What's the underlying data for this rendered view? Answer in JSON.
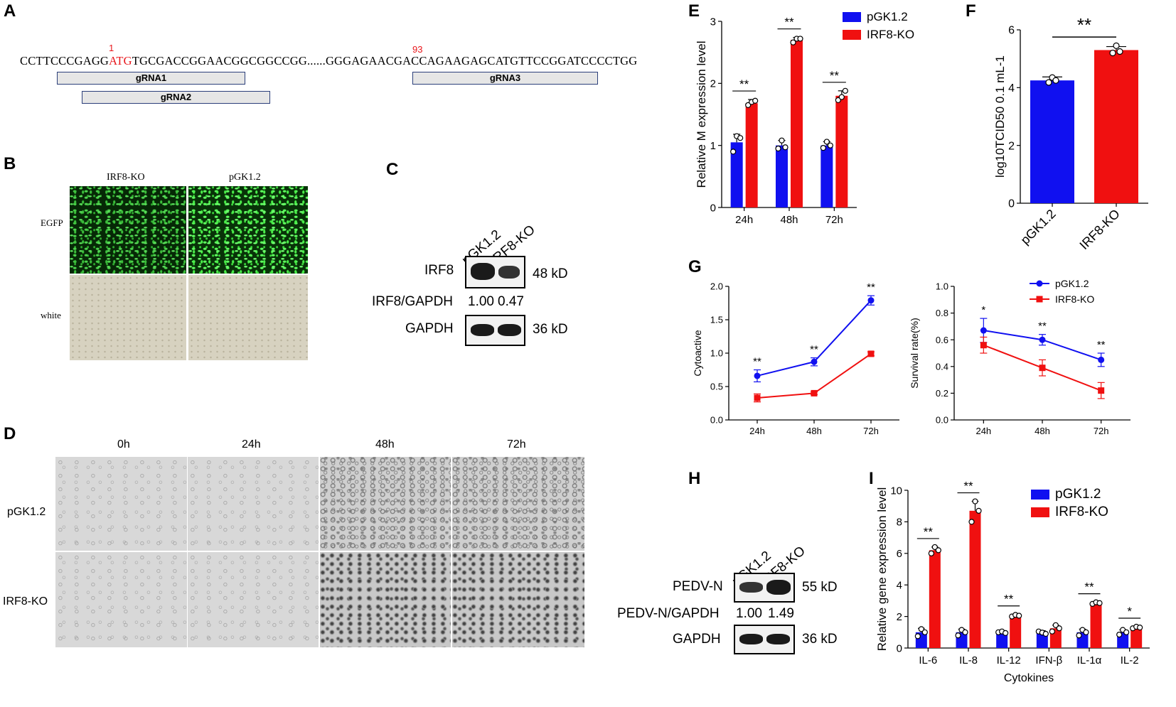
{
  "panels": {
    "A": "A",
    "B": "B",
    "C": "C",
    "D": "D",
    "E": "E",
    "F": "F",
    "G": "G",
    "H": "H",
    "I": "I"
  },
  "panelA": {
    "pos1": "1",
    "pos93": "93",
    "seq_a": "CCTTCCCGAGG",
    "seq_atg": "ATG",
    "seq_b": "TGCGACCGGAACGGCGGCCGG",
    "ellipsis": "......",
    "seq_c": "GGGAGAACGAC",
    "seq_d": "CAGAAGAGCATGTTCCGGATCCCCTGG",
    "grna1": "gRNA1",
    "grna2": "gRNA2",
    "grna3": "gRNA3"
  },
  "panelB": {
    "col1": "IRF8-KO",
    "col2": "pGK1.2",
    "row1": "EGFP",
    "row2": "white"
  },
  "panelC": {
    "lane1": "pGK1.2",
    "lane2": "IRF8-KO",
    "row1": "IRF8",
    "row1_size": "48 kD",
    "ratio_label": "IRF8/GAPDH",
    "ratio1": "1.00",
    "ratio2": "0.47",
    "row3": "GAPDH",
    "row3_size": "36 kD"
  },
  "panelD": {
    "cols": [
      "0h",
      "24h",
      "48h",
      "72h"
    ],
    "rows": [
      "pGK1.2",
      "IRF8-KO"
    ]
  },
  "panelH": {
    "lane1": "pGK1.2",
    "lane2": "IRF8-KO",
    "row1": "PEDV-N",
    "row1_size": "55 kD",
    "ratio_label": "PEDV-N/GAPDH",
    "ratio1": "1.00",
    "ratio2": "1.49",
    "row3": "GAPDH",
    "row3_size": "36 kD"
  },
  "colors": {
    "blue": "#1010f0",
    "red": "#f01010"
  },
  "chart_data": [
    {
      "id": "E",
      "type": "bar",
      "ylabel": "Relative M expression level",
      "categories": [
        "24h",
        "48h",
        "72h"
      ],
      "ylim": [
        0,
        3
      ],
      "yticks": [
        0,
        1,
        2,
        3
      ],
      "series": [
        {
          "name": "pGK1.2",
          "color": "#1010f0",
          "values": [
            1.05,
            1.0,
            1.0
          ],
          "err": [
            0.13,
            0.08,
            0.06
          ],
          "points": [
            [
              0.9,
              1.15,
              1.12
            ],
            [
              0.95,
              1.08,
              0.97
            ],
            [
              0.96,
              1.06,
              1.0
            ]
          ]
        },
        {
          "name": "IRF8-KO",
          "color": "#f01010",
          "values": [
            1.68,
            2.7,
            1.8
          ],
          "err": [
            0.06,
            0.04,
            0.08
          ],
          "points": [
            [
              1.65,
              1.7,
              1.72
            ],
            [
              2.66,
              2.72,
              2.72
            ],
            [
              1.73,
              1.78,
              1.88
            ]
          ]
        }
      ],
      "sig": [
        "**",
        "**",
        "**"
      ],
      "legend": "top-right"
    },
    {
      "id": "F",
      "type": "bar",
      "ylabel": "log10TCID50 0.1 mL-1",
      "categories": [
        "pGK1.2",
        "IRF8-KO"
      ],
      "ylim": [
        0,
        6
      ],
      "yticks": [
        0,
        2,
        4,
        6
      ],
      "values": [
        4.25,
        5.3
      ],
      "err": [
        0.12,
        0.12
      ],
      "colors": [
        "#1010f0",
        "#f01010"
      ],
      "points": [
        [
          4.18,
          4.35,
          4.25
        ],
        [
          5.2,
          5.45,
          5.25
        ]
      ],
      "sig": "**"
    },
    {
      "id": "G1",
      "type": "line",
      "ylabel": "Cytoactive",
      "x": [
        "24h",
        "48h",
        "72h"
      ],
      "ylim": [
        0,
        2
      ],
      "yticks": [
        "0.0",
        "0.5",
        "1.0",
        "1.5",
        "2.0"
      ],
      "series": [
        {
          "name": "pGK1.2",
          "color": "#1010f0",
          "values": [
            0.66,
            0.87,
            1.79
          ],
          "err": [
            0.09,
            0.06,
            0.07
          ]
        },
        {
          "name": "IRF8-KO",
          "color": "#f01010",
          "values": [
            0.33,
            0.4,
            0.99
          ],
          "err": [
            0.06,
            0.02,
            0.03
          ]
        }
      ],
      "sig": [
        "**",
        "**",
        "**"
      ]
    },
    {
      "id": "G2",
      "type": "line",
      "ylabel": "Survival rate(%)",
      "x": [
        "24h",
        "48h",
        "72h"
      ],
      "ylim": [
        0,
        1
      ],
      "yticks": [
        "0.0",
        "0.2",
        "0.4",
        "0.6",
        "0.8",
        "1.0"
      ],
      "series": [
        {
          "name": "pGK1.2",
          "color": "#1010f0",
          "values": [
            0.67,
            0.6,
            0.45
          ],
          "err": [
            0.09,
            0.04,
            0.05
          ]
        },
        {
          "name": "IRF8-KO",
          "color": "#f01010",
          "values": [
            0.56,
            0.39,
            0.22
          ],
          "err": [
            0.06,
            0.06,
            0.06
          ]
        }
      ],
      "sig": [
        "*",
        "**",
        "**"
      ],
      "legend": "top-right"
    },
    {
      "id": "I",
      "type": "bar",
      "ylabel": "Relative gene expression level",
      "xlabel": "Cytokines",
      "categories": [
        "IL-6",
        "IL-8",
        "IL-12",
        "IFN-β",
        "IL-1α",
        "IL-2"
      ],
      "ylim": [
        0,
        10
      ],
      "yticks": [
        0,
        2,
        4,
        6,
        8,
        10
      ],
      "series": [
        {
          "name": "pGK1.2",
          "color": "#1010f0",
          "values": [
            1.0,
            1.0,
            1.0,
            1.0,
            1.0,
            1.0
          ],
          "err": [
            0.25,
            0.2,
            0.1,
            0.1,
            0.2,
            0.15
          ],
          "points": [
            [
              0.75,
              1.2,
              1.0
            ],
            [
              0.8,
              1.15,
              1.0
            ],
            [
              1.0,
              1.05,
              0.95
            ],
            [
              1.05,
              0.98,
              0.9
            ],
            [
              0.8,
              1.15,
              1.0
            ],
            [
              0.85,
              1.15,
              1.0
            ]
          ]
        },
        {
          "name": "IRF8-KO",
          "color": "#f01010",
          "values": [
            6.2,
            8.7,
            2.05,
            1.25,
            2.85,
            1.3
          ],
          "err": [
            0.2,
            0.6,
            0.08,
            0.2,
            0.05,
            0.05
          ],
          "points": [
            [
              6.0,
              6.4,
              6.2
            ],
            [
              8.0,
              9.3,
              8.7
            ],
            [
              2.0,
              2.1,
              2.05
            ],
            [
              1.05,
              1.45,
              1.25
            ],
            [
              2.8,
              2.9,
              2.85
            ],
            [
              1.25,
              1.35,
              1.3
            ]
          ]
        }
      ],
      "sig": [
        "**",
        "**",
        "**",
        "",
        "**",
        "*"
      ],
      "legend": "top-right"
    }
  ]
}
